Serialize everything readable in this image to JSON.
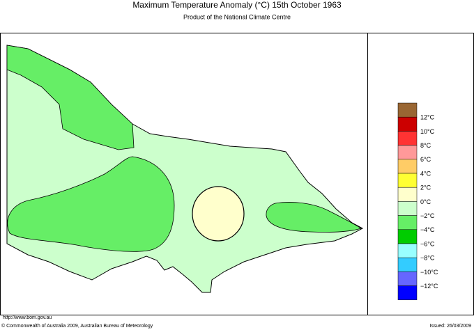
{
  "title": "Maximum Temperature Anomaly (°C)  15th October 1963",
  "subtitle": "Product of the National Climate Centre",
  "legend": {
    "colors": [
      "#996633",
      "#cc0000",
      "#ff3333",
      "#ff9999",
      "#ffcc66",
      "#ffff33",
      "#ffffcc",
      "#ccffcc",
      "#66ee66",
      "#00cc00",
      "#99ffff",
      "#33ccff",
      "#6666ff",
      "#0000ff"
    ],
    "labels": [
      "12°C",
      "10°C",
      "8°C",
      "6°C",
      "4°C",
      "2°C",
      "0°C",
      "−2°C",
      "−4°C",
      "−6°C",
      "−8°C",
      "−10°C",
      "−12°C"
    ]
  },
  "footer": {
    "url": "http://www.bom.gov.au",
    "copyright": "© Commonwealth of Australia 2009, Australian Bureau of Meteorology",
    "issued": "Issued: 26/03/2009"
  }
}
